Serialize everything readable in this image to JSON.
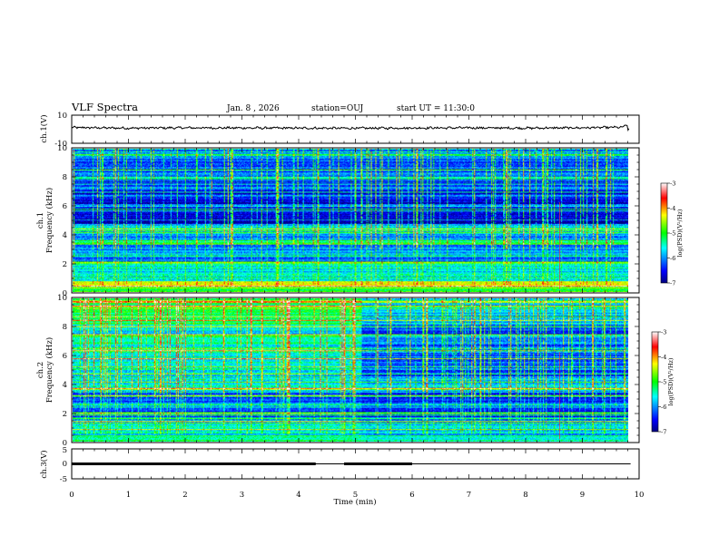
{
  "header": {
    "title": "VLF Spectra",
    "date": "Jan. 8 , 2026",
    "station": "station=OUJ",
    "start": "start UT = 11:30:0"
  },
  "chart_data": [
    {
      "type": "line",
      "panel": "ch1-waveform",
      "ylabel": "ch.1(V)",
      "ylim": [
        -10,
        10
      ],
      "yticks": [
        "10",
        "-10"
      ],
      "xlim": [
        0,
        10
      ],
      "series": [
        {
          "x": [
            0,
            1,
            2,
            3,
            4,
            5,
            6,
            7,
            8,
            9,
            9.7,
            9.8
          ],
          "values": [
            1.2,
            0.8,
            1.0,
            0.9,
            0.8,
            0.7,
            0.9,
            1.0,
            0.8,
            1.0,
            1.4,
            3.0
          ]
        }
      ]
    },
    {
      "type": "heatmap",
      "panel": "ch1-spectrogram",
      "ylabel": "ch.1",
      "ylabel2": "Frequency (kHz)",
      "ylim": [
        0,
        10
      ],
      "yticks": [
        "0",
        "2",
        "4",
        "6",
        "8",
        "10"
      ],
      "xlim": [
        0,
        9.85
      ],
      "colorbar": {
        "label": "log(PSD)(V²/Hz)",
        "range": [
          -7,
          -3
        ],
        "ticks": [
          "-3",
          "-4",
          "-5",
          "-6",
          "-7"
        ]
      }
    },
    {
      "type": "heatmap",
      "panel": "ch2-spectrogram",
      "ylabel": "ch.2",
      "ylabel2": "Frequency (kHz)",
      "ylim": [
        0,
        10
      ],
      "yticks": [
        "0",
        "2",
        "4",
        "6",
        "8",
        "10"
      ],
      "xlim": [
        0,
        9.85
      ],
      "colorbar": {
        "label": "log(PSD)(V²/Hz)",
        "range": [
          -7,
          -3
        ],
        "ticks": [
          "-3",
          "-4",
          "-5",
          "-6",
          "-7"
        ]
      }
    },
    {
      "type": "line",
      "panel": "ch3-signal",
      "ylabel": "ch.3(V)",
      "ylim": [
        -5,
        5
      ],
      "yticks": [
        "5",
        "0",
        "-5"
      ],
      "xlim": [
        0,
        10
      ],
      "xlabel": "Time (min)",
      "xticks": [
        "0",
        "1",
        "2",
        "3",
        "4",
        "5",
        "6",
        "7",
        "8",
        "9",
        "10"
      ],
      "series": [
        {
          "x": [
            0,
            9.85
          ],
          "values": [
            0,
            0
          ]
        }
      ],
      "thick_segments": [
        [
          0,
          4.3
        ],
        [
          4.8,
          6.0
        ]
      ]
    }
  ]
}
